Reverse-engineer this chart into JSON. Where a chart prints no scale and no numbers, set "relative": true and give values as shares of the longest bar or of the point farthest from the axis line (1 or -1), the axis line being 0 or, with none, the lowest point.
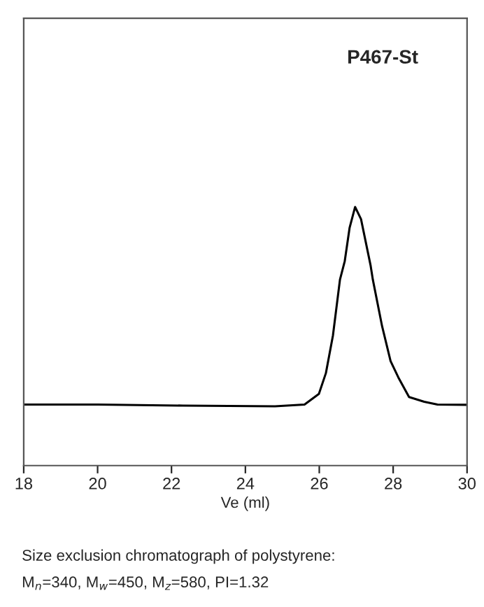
{
  "chart_data": {
    "type": "line",
    "relative": true,
    "xlabel": "Ve (ml)",
    "x": [
      18,
      20,
      22.3,
      24.8,
      25.6,
      25.99,
      26.18,
      26.37,
      26.56,
      26.69,
      26.82,
      26.97,
      27.13,
      27.39,
      27.45,
      27.7,
      27.93,
      28.14,
      28.43,
      28.84,
      29.2,
      30
    ],
    "series": [
      {
        "color": "#000000",
        "values": [
          0.236,
          0.236,
          0.232,
          0.229,
          0.236,
          0.277,
          0.358,
          0.503,
          0.719,
          0.791,
          0.919,
          1,
          0.953,
          0.773,
          0.719,
          0.539,
          0.404,
          0.341,
          0.265,
          0.247,
          0.236,
          0.235
        ]
      }
    ],
    "xlim": [
      18,
      30
    ],
    "xticks": [
      18,
      20,
      22,
      24,
      26,
      28,
      30
    ],
    "grid": false,
    "legend": false,
    "marker": "none",
    "line_style": "solid",
    "title": "P467-St",
    "annotations": [
      "Size exclusion chromatograph of polystyrene:",
      "M$_{n}$=340, M$_{w}$=450, M$_{z}$=580, PI=1.32"
    ]
  }
}
